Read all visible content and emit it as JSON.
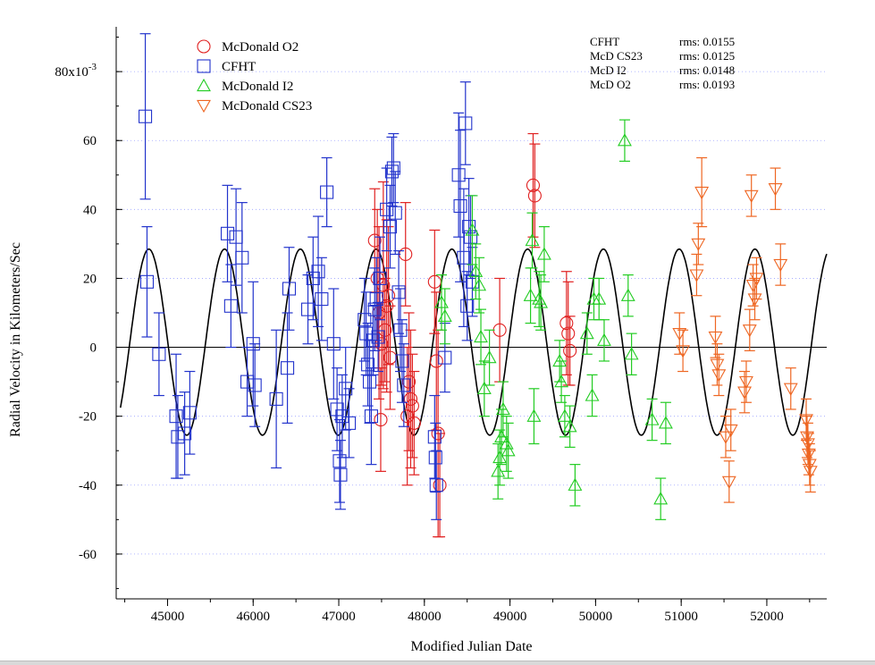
{
  "chart_data": {
    "type": "scatter",
    "title": "",
    "xlabel": "Modified Julian Date",
    "ylabel": "Radial Velocity in Kilometers/Sec",
    "xlim": [
      44400,
      52700
    ],
    "ylim": [
      -0.073,
      0.093
    ],
    "x_ticks": [
      45000,
      46000,
      47000,
      48000,
      49000,
      50000,
      51000,
      52000
    ],
    "x_tick_labels": [
      "45000",
      "46000",
      "47000",
      "48000",
      "49000",
      "50000",
      "51000",
      "52000"
    ],
    "y_ticks": [
      0.08,
      0.06,
      0.04,
      0.02,
      0,
      -0.02,
      -0.04,
      -0.06
    ],
    "y_tick_labels": [
      "80x10",
      "60",
      "40",
      "20",
      "0",
      "-20",
      "-40",
      "-60"
    ],
    "y_tick_exponent": "-3",
    "grid": "horizontal dotted",
    "legend_position": "top-left",
    "model_curve": {
      "amplitude": 0.027,
      "offset": 0.0015,
      "period_days": 885,
      "phase_mjd": 44560,
      "color": "#000000"
    },
    "rms_table": [
      {
        "name": "CFHT",
        "rms": "rms: 0.0155"
      },
      {
        "name": "McD CS23",
        "rms": "rms: 0.0125"
      },
      {
        "name": "McD I2",
        "rms": "rms: 0.0148"
      },
      {
        "name": "McD O2",
        "rms": "rms: 0.0193"
      }
    ],
    "series": [
      {
        "name": "McDonald O2",
        "marker": "circle",
        "color": "#e02020",
        "points": [
          [
            47420,
            0.031,
            0.015
          ],
          [
            47450,
            0.02,
            0.02
          ],
          [
            47470,
            0.01,
            0.025
          ],
          [
            47490,
            -0.021,
            0.015
          ],
          [
            47500,
            0.001,
            0.012
          ],
          [
            47520,
            0.018,
            0.03
          ],
          [
            47540,
            0.005,
            0.015
          ],
          [
            47560,
            0.012,
            0.025
          ],
          [
            47580,
            0.015,
            0.02
          ],
          [
            47600,
            -0.003,
            0.015
          ],
          [
            47780,
            0.027,
            0.015
          ],
          [
            47800,
            -0.02,
            0.02
          ],
          [
            47820,
            -0.01,
            0.02
          ],
          [
            47840,
            -0.015,
            0.02
          ],
          [
            47860,
            -0.017,
            0.015
          ],
          [
            47880,
            -0.022,
            0.015
          ],
          [
            48120,
            0.019,
            0.015
          ],
          [
            48140,
            -0.004,
            0.02
          ],
          [
            48160,
            -0.025,
            0.03
          ],
          [
            48180,
            -0.04,
            0.015
          ],
          [
            48880,
            0.005,
            0.015
          ],
          [
            49270,
            0.047,
            0.015
          ],
          [
            49290,
            0.044,
            0.015
          ],
          [
            49660,
            0.007,
            0.015
          ],
          [
            49680,
            0.004,
            0.015
          ],
          [
            49700,
            -0.001,
            0.01
          ]
        ]
      },
      {
        "name": "CFHT",
        "marker": "square",
        "color": "#2233cc",
        "points": [
          [
            44740,
            0.067,
            0.024
          ],
          [
            44760,
            0.019,
            0.016
          ],
          [
            44900,
            -0.002,
            0.012
          ],
          [
            45100,
            -0.02,
            0.018
          ],
          [
            45120,
            -0.026,
            0.012
          ],
          [
            45200,
            -0.025,
            0.012
          ],
          [
            45260,
            -0.019,
            0.012
          ],
          [
            45700,
            0.033,
            0.014
          ],
          [
            45740,
            0.012,
            0.012
          ],
          [
            45800,
            0.032,
            0.014
          ],
          [
            45870,
            0.026,
            0.016
          ],
          [
            45930,
            -0.01,
            0.01
          ],
          [
            46000,
            0.001,
            0.018
          ],
          [
            46020,
            -0.011,
            0.012
          ],
          [
            46270,
            -0.015,
            0.02
          ],
          [
            46400,
            -0.006,
            0.016
          ],
          [
            46420,
            0.017,
            0.012
          ],
          [
            46640,
            0.011,
            0.01
          ],
          [
            46700,
            0.02,
            0.012
          ],
          [
            46760,
            0.022,
            0.016
          ],
          [
            46800,
            0.014,
            0.012
          ],
          [
            46860,
            0.045,
            0.01
          ],
          [
            46940,
            0.001,
            0.016
          ],
          [
            46980,
            -0.018,
            0.012
          ],
          [
            47010,
            -0.033,
            0.012
          ],
          [
            47020,
            -0.037,
            0.01
          ],
          [
            47040,
            -0.02,
            0.012
          ],
          [
            47080,
            -0.012,
            0.012
          ],
          [
            47120,
            -0.022,
            0.01
          ],
          [
            47300,
            0.008,
            0.012
          ],
          [
            47320,
            0.004,
            0.012
          ],
          [
            47340,
            -0.005,
            0.012
          ],
          [
            47360,
            -0.01,
            0.012
          ],
          [
            47380,
            -0.02,
            0.014
          ],
          [
            47400,
            0.002,
            0.01
          ],
          [
            47420,
            0.011,
            0.012
          ],
          [
            47440,
            0.014,
            0.012
          ],
          [
            47460,
            0.003,
            0.01
          ],
          [
            47480,
            0.02,
            0.012
          ],
          [
            47560,
            0.04,
            0.012
          ],
          [
            47600,
            0.035,
            0.012
          ],
          [
            47620,
            0.051,
            0.01
          ],
          [
            47640,
            0.052,
            0.01
          ],
          [
            47660,
            0.039,
            0.012
          ],
          [
            47700,
            0.016,
            0.012
          ],
          [
            47720,
            0.005,
            0.012
          ],
          [
            47740,
            -0.004,
            0.012
          ],
          [
            47760,
            -0.011,
            0.012
          ],
          [
            48120,
            -0.026,
            0.012
          ],
          [
            48130,
            -0.032,
            0.01
          ],
          [
            48140,
            -0.04,
            0.01
          ],
          [
            48240,
            -0.003,
            0.01
          ],
          [
            48400,
            0.05,
            0.018
          ],
          [
            48420,
            0.041,
            0.022
          ],
          [
            48460,
            0.026,
            0.02
          ],
          [
            48480,
            0.065,
            0.012
          ],
          [
            48500,
            0.012,
            0.01
          ],
          [
            48520,
            0.035,
            0.014
          ],
          [
            48540,
            0.032,
            0.012
          ],
          [
            48560,
            0.019,
            0.01
          ]
        ]
      },
      {
        "name": "McDonald I2",
        "marker": "triangle-up",
        "color": "#22cc22",
        "points": [
          [
            48200,
            0.013,
            0.008
          ],
          [
            48240,
            0.009,
            0.008
          ],
          [
            48560,
            0.034,
            0.01
          ],
          [
            48600,
            0.022,
            0.008
          ],
          [
            48640,
            0.018,
            0.008
          ],
          [
            48660,
            0.003,
            0.008
          ],
          [
            48700,
            -0.012,
            0.008
          ],
          [
            48760,
            -0.003,
            0.008
          ],
          [
            48860,
            -0.036,
            0.008
          ],
          [
            48880,
            -0.032,
            0.008
          ],
          [
            48900,
            -0.026,
            0.008
          ],
          [
            48920,
            -0.018,
            0.008
          ],
          [
            48960,
            -0.028,
            0.008
          ],
          [
            48980,
            -0.03,
            0.008
          ],
          [
            49240,
            0.015,
            0.008
          ],
          [
            49260,
            0.031,
            0.008
          ],
          [
            49280,
            -0.02,
            0.008
          ],
          [
            49340,
            0.014,
            0.008
          ],
          [
            49360,
            0.013,
            0.008
          ],
          [
            49400,
            0.027,
            0.008
          ],
          [
            49580,
            -0.004,
            0.006
          ],
          [
            49600,
            -0.01,
            0.006
          ],
          [
            49640,
            -0.02,
            0.006
          ],
          [
            49700,
            -0.023,
            0.006
          ],
          [
            49760,
            -0.04,
            0.006
          ],
          [
            49900,
            0.004,
            0.006
          ],
          [
            49960,
            -0.014,
            0.006
          ],
          [
            49980,
            0.014,
            0.006
          ],
          [
            50040,
            0.014,
            0.006
          ],
          [
            50100,
            0.002,
            0.006
          ],
          [
            50340,
            0.06,
            0.006
          ],
          [
            50380,
            0.015,
            0.006
          ],
          [
            50420,
            -0.002,
            0.006
          ],
          [
            50660,
            -0.021,
            0.006
          ],
          [
            50760,
            -0.044,
            0.006
          ],
          [
            50820,
            -0.022,
            0.006
          ]
        ]
      },
      {
        "name": "McDonald CS23",
        "marker": "triangle-down",
        "color": "#ee6622",
        "points": [
          [
            50980,
            0.004,
            0.006
          ],
          [
            51020,
            -0.001,
            0.006
          ],
          [
            51180,
            0.021,
            0.006
          ],
          [
            51200,
            0.03,
            0.006
          ],
          [
            51240,
            0.045,
            0.01
          ],
          [
            51400,
            0.003,
            0.006
          ],
          [
            51420,
            -0.005,
            0.006
          ],
          [
            51440,
            -0.008,
            0.006
          ],
          [
            51520,
            -0.026,
            0.006
          ],
          [
            51560,
            -0.039,
            0.006
          ],
          [
            51580,
            -0.024,
            0.006
          ],
          [
            51740,
            -0.013,
            0.006
          ],
          [
            51760,
            -0.01,
            0.006
          ],
          [
            51800,
            0.005,
            0.006
          ],
          [
            51820,
            0.044,
            0.006
          ],
          [
            51840,
            0.018,
            0.006
          ],
          [
            51860,
            0.014,
            0.006
          ],
          [
            51880,
            0.02,
            0.006
          ],
          [
            52100,
            0.046,
            0.006
          ],
          [
            52160,
            0.024,
            0.006
          ],
          [
            52280,
            -0.012,
            0.006
          ],
          [
            52460,
            -0.021,
            0.006
          ],
          [
            52470,
            -0.026,
            0.006
          ],
          [
            52480,
            -0.028,
            0.006
          ],
          [
            52490,
            -0.031,
            0.006
          ],
          [
            52500,
            -0.034,
            0.006
          ],
          [
            52510,
            -0.036,
            0.006
          ]
        ]
      }
    ]
  }
}
